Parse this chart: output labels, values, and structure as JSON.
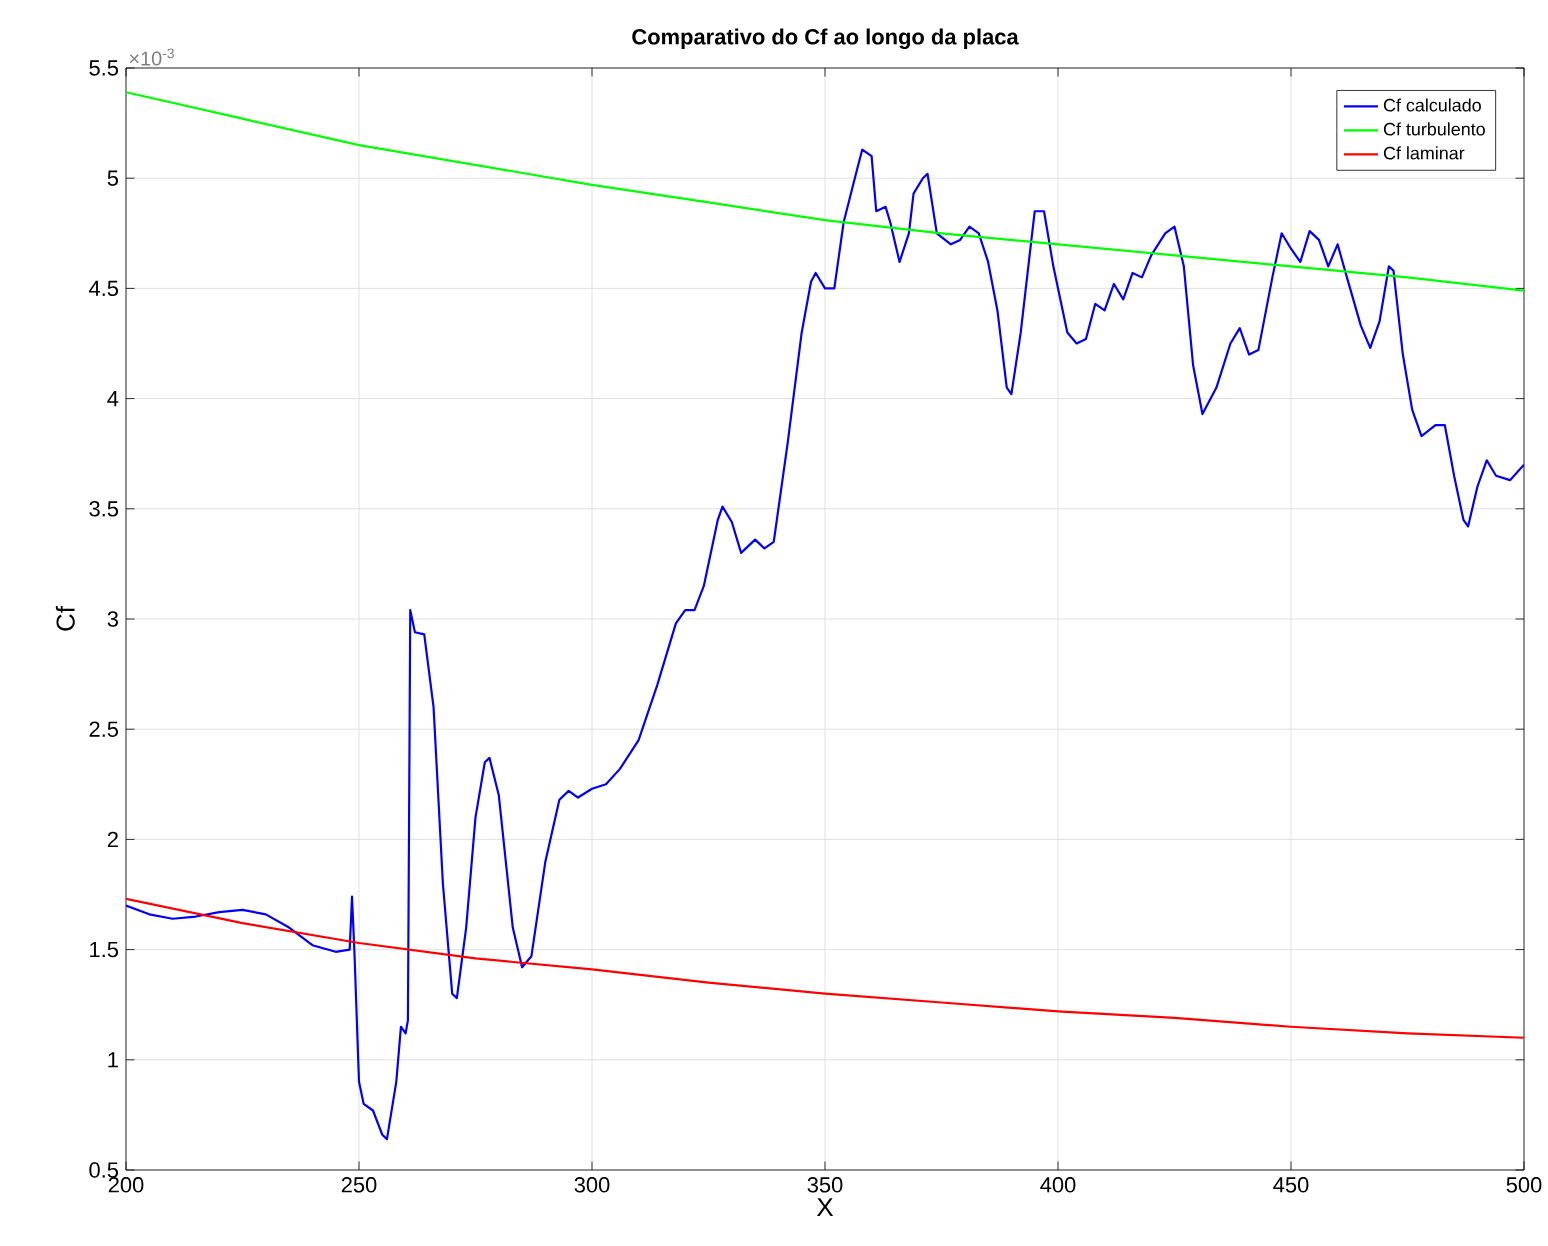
{
  "chart_data": {
    "type": "line",
    "title": "Comparativo do Cf ao longo da placa",
    "xlabel": "X",
    "ylabel": "Cf",
    "annotations": [
      "×10$^{-3}$"
    ],
    "xlim": [
      200,
      500
    ],
    "xticks": [
      200,
      250,
      300,
      350,
      400,
      450,
      500
    ],
    "ylim": [
      0.5,
      5.5
    ],
    "yticks": [
      0.5,
      1,
      1.5,
      2,
      2.5,
      3,
      3.5,
      4,
      4.5,
      5,
      5.5
    ],
    "grid": true,
    "legend": "top right",
    "marker": "none",
    "line_style": "solid",
    "series": [
      {
        "name": "Cf calculado",
        "color": "#0000ff",
        "x": [
          200,
          205,
          210,
          215,
          220,
          225,
          230,
          235,
          240,
          245,
          248,
          248.5,
          249,
          250,
          251,
          253,
          255,
          256,
          258,
          259,
          260,
          260.5,
          261,
          262,
          264,
          266,
          268,
          270,
          271,
          273,
          275,
          277,
          278,
          280,
          283,
          285,
          287,
          290,
          293,
          295,
          297,
          300,
          303,
          306,
          310,
          314,
          318,
          320,
          322,
          324,
          327,
          328,
          330,
          332,
          335,
          337,
          339,
          342,
          345,
          347,
          348,
          350,
          352,
          354,
          357,
          358,
          360,
          361,
          363,
          364,
          366,
          368,
          369,
          371,
          372,
          374,
          377,
          379,
          381,
          383,
          385,
          387,
          389,
          390,
          392,
          395,
          397,
          399,
          402,
          404,
          406,
          408,
          410,
          412,
          414,
          416,
          418,
          420,
          423,
          425,
          427,
          429,
          431,
          434,
          437,
          439,
          441,
          443,
          446,
          448,
          450,
          452,
          454,
          456,
          458,
          460,
          462,
          465,
          467,
          469,
          471,
          472,
          474,
          476,
          478,
          481,
          483,
          485,
          487,
          488,
          490,
          492,
          494,
          497,
          500
        ],
        "values": [
          1.7,
          1.66,
          1.64,
          1.65,
          1.67,
          1.68,
          1.66,
          1.6,
          1.52,
          1.49,
          1.5,
          1.74,
          1.5,
          0.9,
          0.8,
          0.77,
          0.66,
          0.64,
          0.9,
          1.15,
          1.12,
          1.18,
          3.04,
          2.94,
          2.93,
          2.6,
          1.8,
          1.3,
          1.28,
          1.6,
          2.1,
          2.35,
          2.37,
          2.2,
          1.6,
          1.42,
          1.47,
          1.9,
          2.18,
          2.22,
          2.19,
          2.23,
          2.25,
          2.32,
          2.45,
          2.7,
          2.98,
          3.04,
          3.04,
          3.15,
          3.45,
          3.51,
          3.44,
          3.3,
          3.36,
          3.32,
          3.35,
          3.8,
          4.3,
          4.53,
          4.57,
          4.5,
          4.5,
          4.8,
          5.05,
          5.13,
          5.1,
          4.85,
          4.87,
          4.8,
          4.62,
          4.75,
          4.93,
          5.0,
          5.02,
          4.75,
          4.7,
          4.72,
          4.78,
          4.75,
          4.62,
          4.4,
          4.05,
          4.02,
          4.3,
          4.85,
          4.85,
          4.6,
          4.3,
          4.25,
          4.27,
          4.43,
          4.4,
          4.52,
          4.45,
          4.57,
          4.55,
          4.65,
          4.75,
          4.78,
          4.6,
          4.15,
          3.93,
          4.05,
          4.25,
          4.32,
          4.2,
          4.22,
          4.55,
          4.75,
          4.68,
          4.62,
          4.76,
          4.72,
          4.6,
          4.7,
          4.55,
          4.33,
          4.23,
          4.35,
          4.6,
          4.58,
          4.2,
          3.95,
          3.83,
          3.88,
          3.88,
          3.65,
          3.45,
          3.42,
          3.6,
          3.72,
          3.65,
          3.63,
          3.7
        ]
      },
      {
        "name": "Cf turbulento",
        "color": "#00ff00",
        "x": [
          200,
          225,
          250,
          275,
          300,
          325,
          350,
          375,
          400,
          425,
          450,
          475,
          500
        ],
        "values": [
          5.39,
          5.27,
          5.15,
          5.06,
          4.97,
          4.89,
          4.81,
          4.75,
          4.7,
          4.65,
          4.6,
          4.55,
          4.49
        ]
      },
      {
        "name": "Cf laminar",
        "color": "#ff0000",
        "x": [
          200,
          225,
          250,
          275,
          300,
          325,
          350,
          375,
          400,
          425,
          450,
          475,
          500
        ],
        "values": [
          1.73,
          1.62,
          1.53,
          1.46,
          1.41,
          1.35,
          1.3,
          1.26,
          1.22,
          1.19,
          1.15,
          1.12,
          1.1
        ]
      }
    ]
  }
}
